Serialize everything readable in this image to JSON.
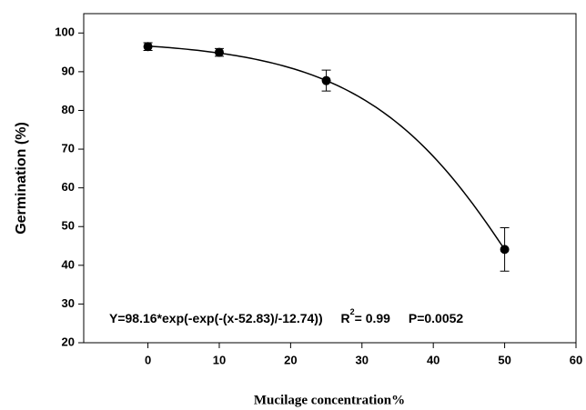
{
  "chart_data": {
    "type": "scatter",
    "x_label": "Mucilage concentration%",
    "y_label": "Germination (%)",
    "x": [
      0,
      10,
      25,
      50
    ],
    "values": [
      96.5,
      95,
      87.7,
      44.1
    ],
    "errors": [
      1,
      1,
      2.7,
      5.6
    ],
    "color": "#000000",
    "xlim": [
      -9,
      60
    ],
    "xticks": [
      0,
      10,
      20,
      30,
      40,
      50,
      60
    ],
    "ylim": [
      20,
      105
    ],
    "yticks": [
      20,
      30,
      40,
      50,
      60,
      70,
      80,
      90,
      100
    ],
    "fit": {
      "a": 98.16,
      "b": 52.83,
      "c": -12.74
    },
    "annotation": {
      "equation": "Y=98.16*exp(-exp(-(x-52.83)/-12.74))",
      "r": "R",
      "r_sup": "2",
      "r_value": "= 0.99",
      "p": "P=0.0052"
    }
  }
}
